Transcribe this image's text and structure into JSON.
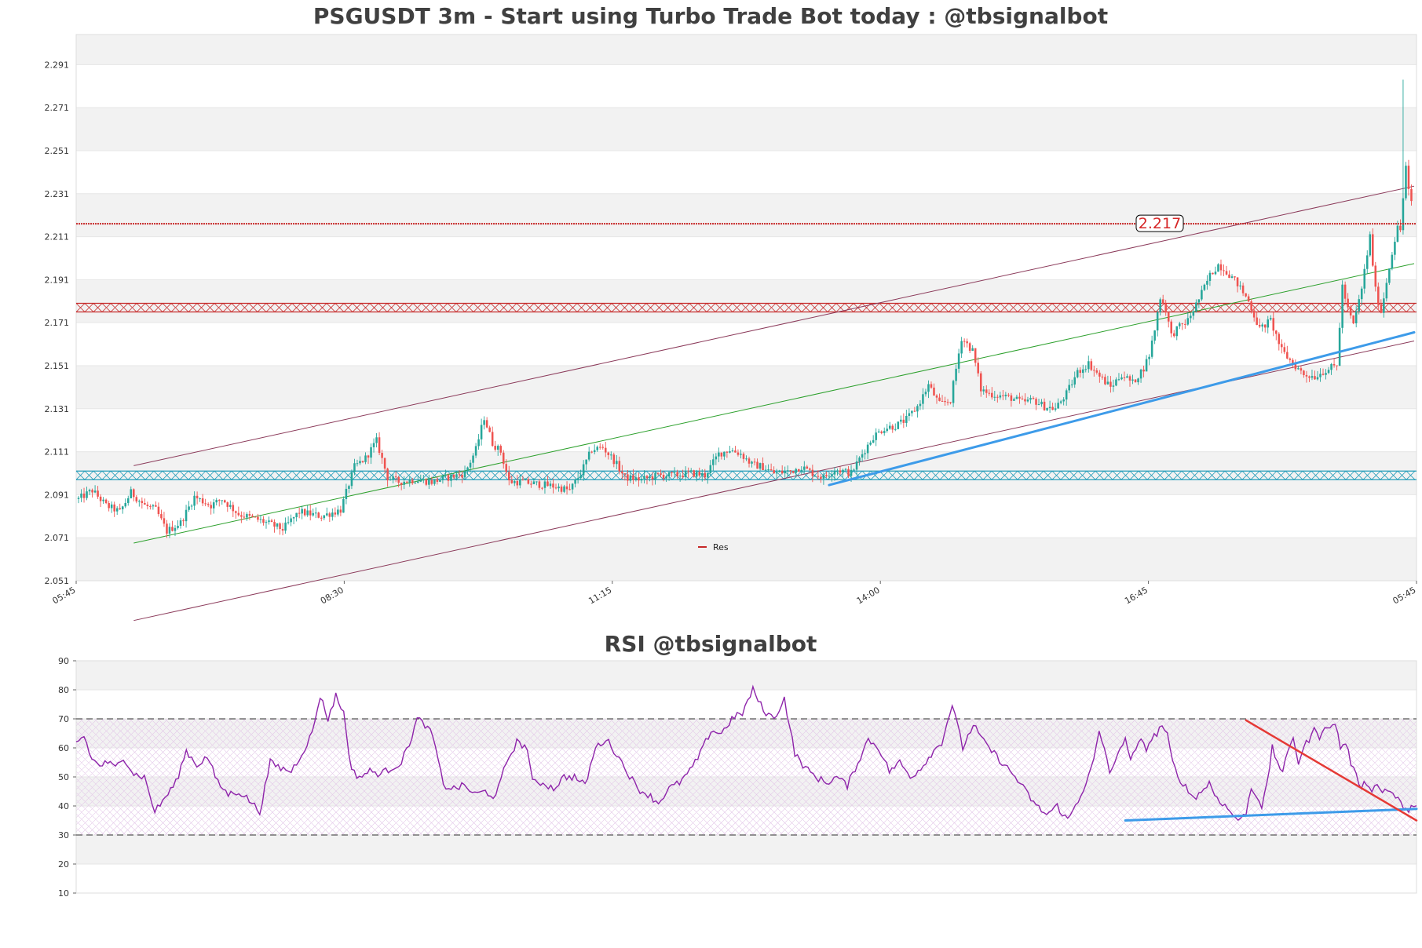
{
  "colors": {
    "up": "#26a69a",
    "down": "#ef5350",
    "resistance": "#c62828",
    "support": "#1f9bb8",
    "channel": "#8b3a5a",
    "midline": "#2ca02c",
    "trend_blue": "#3d9be9",
    "rsi_line": "#8e24aa",
    "rsi_trend_red": "#e53935",
    "band_fill": "#f2f2f2"
  },
  "chart_data": [
    {
      "type": "candlestick",
      "title": "PSGUSDT 3m - Start using Turbo Trade Bot today : @tbsignalbot",
      "ylim": [
        2.051,
        2.305
      ],
      "yticks": [
        "2.051",
        "2.071",
        "2.091",
        "2.111",
        "2.131",
        "2.151",
        "2.171",
        "2.191",
        "2.211",
        "2.231",
        "2.251",
        "2.271",
        "2.291"
      ],
      "xticks": [
        "05:45",
        "08:30",
        "11:15",
        "14:00",
        "16:45",
        "05:45"
      ],
      "bars_count": 484,
      "close_anchors": [
        [
          0,
          2.089
        ],
        [
          5,
          2.093
        ],
        [
          10,
          2.086
        ],
        [
          15,
          2.083
        ],
        [
          19,
          2.092
        ],
        [
          24,
          2.086
        ],
        [
          28,
          2.084
        ],
        [
          32,
          2.074
        ],
        [
          37,
          2.078
        ],
        [
          42,
          2.09
        ],
        [
          48,
          2.086
        ],
        [
          52,
          2.089
        ],
        [
          58,
          2.082
        ],
        [
          66,
          2.079
        ],
        [
          74,
          2.075
        ],
        [
          80,
          2.083
        ],
        [
          88,
          2.081
        ],
        [
          95,
          2.084
        ],
        [
          100,
          2.104
        ],
        [
          104,
          2.108
        ],
        [
          108,
          2.116
        ],
        [
          112,
          2.099
        ],
        [
          116,
          2.097
        ],
        [
          122,
          2.098
        ],
        [
          128,
          2.097
        ],
        [
          134,
          2.099
        ],
        [
          140,
          2.101
        ],
        [
          144,
          2.112
        ],
        [
          147,
          2.127
        ],
        [
          150,
          2.115
        ],
        [
          153,
          2.111
        ],
        [
          156,
          2.097
        ],
        [
          160,
          2.097
        ],
        [
          166,
          2.096
        ],
        [
          172,
          2.095
        ],
        [
          178,
          2.093
        ],
        [
          182,
          2.101
        ],
        [
          186,
          2.112
        ],
        [
          190,
          2.113
        ],
        [
          194,
          2.107
        ],
        [
          198,
          2.099
        ],
        [
          204,
          2.098
        ],
        [
          210,
          2.1
        ],
        [
          216,
          2.1
        ],
        [
          222,
          2.101
        ],
        [
          227,
          2.1
        ],
        [
          232,
          2.11
        ],
        [
          236,
          2.112
        ],
        [
          240,
          2.11
        ],
        [
          244,
          2.105
        ],
        [
          248,
          2.104
        ],
        [
          252,
          2.101
        ],
        [
          258,
          2.102
        ],
        [
          262,
          2.104
        ],
        [
          266,
          2.101
        ],
        [
          270,
          2.099
        ],
        [
          274,
          2.103
        ],
        [
          280,
          2.101
        ],
        [
          284,
          2.11
        ],
        [
          288,
          2.118
        ],
        [
          292,
          2.122
        ],
        [
          296,
          2.123
        ],
        [
          300,
          2.126
        ],
        [
          304,
          2.132
        ],
        [
          308,
          2.142
        ],
        [
          312,
          2.133
        ],
        [
          316,
          2.135
        ],
        [
          320,
          2.164
        ],
        [
          324,
          2.158
        ],
        [
          327,
          2.14
        ],
        [
          330,
          2.138
        ],
        [
          334,
          2.137
        ],
        [
          338,
          2.136
        ],
        [
          342,
          2.134
        ],
        [
          346,
          2.135
        ],
        [
          350,
          2.132
        ],
        [
          354,
          2.131
        ],
        [
          358,
          2.138
        ],
        [
          362,
          2.148
        ],
        [
          366,
          2.152
        ],
        [
          370,
          2.146
        ],
        [
          374,
          2.141
        ],
        [
          378,
          2.147
        ],
        [
          382,
          2.143
        ],
        [
          386,
          2.15
        ],
        [
          388,
          2.156
        ],
        [
          390,
          2.168
        ],
        [
          392,
          2.183
        ],
        [
          394,
          2.177
        ],
        [
          396,
          2.165
        ],
        [
          398,
          2.168
        ],
        [
          402,
          2.172
        ],
        [
          406,
          2.182
        ],
        [
          410,
          2.193
        ],
        [
          413,
          2.198
        ],
        [
          416,
          2.195
        ],
        [
          420,
          2.189
        ],
        [
          424,
          2.181
        ],
        [
          428,
          2.168
        ],
        [
          432,
          2.172
        ],
        [
          436,
          2.158
        ],
        [
          440,
          2.152
        ],
        [
          444,
          2.147
        ],
        [
          448,
          2.146
        ],
        [
          452,
          2.149
        ],
        [
          456,
          2.151
        ],
        [
          458,
          2.188
        ],
        [
          460,
          2.177
        ],
        [
          462,
          2.17
        ],
        [
          465,
          2.187
        ],
        [
          468,
          2.211
        ],
        [
          470,
          2.186
        ],
        [
          472,
          2.176
        ],
        [
          474,
          2.19
        ],
        [
          476,
          2.204
        ],
        [
          478,
          2.215
        ],
        [
          479,
          2.214
        ],
        [
          480,
          2.229
        ],
        [
          481,
          2.244
        ],
        [
          482,
          2.232
        ],
        [
          484,
          2.221
        ]
      ],
      "res_line": 2.217,
      "res_label": "2.217",
      "resistance_zone": [
        2.176,
        2.18
      ],
      "support_zone": [
        2.098,
        2.102
      ],
      "channel_upper": [
        [
          20,
          2.1045
        ],
        [
          484,
          2.2345
        ]
      ],
      "channel_lower": [
        [
          20,
          2.0325
        ],
        [
          484,
          2.1625
        ]
      ],
      "channel_mid": [
        [
          20,
          2.0685
        ],
        [
          484,
          2.1985
        ]
      ],
      "trend_blue": [
        [
          272,
          2.0955
        ],
        [
          484,
          2.1665
        ]
      ],
      "legend": [
        "Res"
      ]
    },
    {
      "type": "line",
      "title": "RSI @tbsignalbot",
      "ylim": [
        10,
        90
      ],
      "yticks": [
        "10",
        "20",
        "30",
        "40",
        "50",
        "60",
        "70",
        "80",
        "90"
      ],
      "levels": [
        30,
        70
      ],
      "rsi_anchors": [
        [
          0,
          62
        ],
        [
          3,
          64
        ],
        [
          6,
          56
        ],
        [
          9,
          54
        ],
        [
          12,
          55
        ],
        [
          15,
          53
        ],
        [
          18,
          57
        ],
        [
          22,
          51
        ],
        [
          26,
          50
        ],
        [
          30,
          38
        ],
        [
          34,
          43
        ],
        [
          38,
          48
        ],
        [
          42,
          59
        ],
        [
          46,
          54
        ],
        [
          50,
          57
        ],
        [
          54,
          48
        ],
        [
          58,
          44
        ],
        [
          62,
          45
        ],
        [
          66,
          42
        ],
        [
          70,
          38
        ],
        [
          74,
          55
        ],
        [
          78,
          53
        ],
        [
          82,
          52
        ],
        [
          86,
          58
        ],
        [
          90,
          65
        ],
        [
          93,
          78
        ],
        [
          96,
          70
        ],
        [
          99,
          78
        ],
        [
          102,
          72
        ],
        [
          105,
          52
        ],
        [
          108,
          50
        ],
        [
          112,
          52
        ],
        [
          116,
          51
        ],
        [
          120,
          53
        ],
        [
          124,
          55
        ],
        [
          128,
          64
        ],
        [
          130,
          70
        ],
        [
          133,
          68
        ],
        [
          136,
          64
        ],
        [
          140,
          47
        ],
        [
          144,
          46
        ],
        [
          148,
          47
        ],
        [
          152,
          44
        ],
        [
          156,
          45
        ],
        [
          160,
          43
        ],
        [
          164,
          55
        ],
        [
          168,
          62
        ],
        [
          172,
          60
        ],
        [
          174,
          48
        ],
        [
          178,
          48
        ],
        [
          182,
          46
        ],
        [
          186,
          50
        ],
        [
          190,
          50
        ],
        [
          194,
          47
        ],
        [
          198,
          60
        ],
        [
          202,
          63
        ],
        [
          206,
          58
        ],
        [
          210,
          52
        ],
        [
          214,
          46
        ],
        [
          218,
          44
        ],
        [
          222,
          41
        ],
        [
          226,
          46
        ],
        [
          230,
          48
        ],
        [
          234,
          52
        ],
        [
          238,
          58
        ],
        [
          242,
          66
        ],
        [
          246,
          65
        ],
        [
          250,
          70
        ],
        [
          254,
          72
        ],
        [
          258,
          80
        ],
        [
          262,
          73
        ],
        [
          266,
          70
        ],
        [
          270,
          77
        ],
        [
          274,
          58
        ],
        [
          278,
          53
        ],
        [
          282,
          50
        ],
        [
          286,
          48
        ],
        [
          290,
          50
        ],
        [
          294,
          47
        ],
        [
          298,
          55
        ],
        [
          302,
          63
        ],
        [
          306,
          60
        ],
        [
          310,
          52
        ],
        [
          314,
          55
        ],
        [
          318,
          50
        ],
        [
          322,
          53
        ],
        [
          326,
          58
        ],
        [
          330,
          62
        ],
        [
          334,
          75
        ],
        [
          338,
          60
        ],
        [
          342,
          68
        ],
        [
          346,
          62
        ],
        [
          350,
          58
        ],
        [
          354,
          54
        ],
        [
          358,
          50
        ],
        [
          362,
          45
        ],
        [
          366,
          40
        ],
        [
          370,
          37
        ],
        [
          374,
          40
        ],
        [
          378,
          35
        ],
        [
          382,
          42
        ],
        [
          386,
          50
        ],
        [
          388,
          56
        ],
        [
          390,
          65
        ],
        [
          392,
          60
        ],
        [
          394,
          52
        ],
        [
          396,
          54
        ],
        [
          398,
          60
        ],
        [
          400,
          64
        ],
        [
          402,
          55
        ],
        [
          404,
          60
        ],
        [
          406,
          62
        ],
        [
          408,
          60
        ],
        [
          410,
          63
        ],
        [
          412,
          65
        ],
        [
          414,
          68
        ],
        [
          416,
          64
        ],
        [
          418,
          55
        ],
        [
          420,
          50
        ],
        [
          422,
          48
        ],
        [
          424,
          45
        ],
        [
          426,
          43
        ],
        [
          428,
          44
        ],
        [
          430,
          46
        ],
        [
          432,
          48
        ],
        [
          434,
          44
        ],
        [
          436,
          42
        ],
        [
          438,
          40
        ],
        [
          440,
          38
        ],
        [
          442,
          36
        ],
        [
          444,
          35
        ],
        [
          446,
          38
        ],
        [
          448,
          46
        ],
        [
          450,
          44
        ],
        [
          452,
          40
        ],
        [
          454,
          47
        ],
        [
          456,
          60
        ],
        [
          458,
          55
        ],
        [
          460,
          52
        ],
        [
          462,
          58
        ],
        [
          464,
          64
        ],
        [
          466,
          55
        ],
        [
          468,
          60
        ],
        [
          470,
          63
        ],
        [
          472,
          66
        ],
        [
          474,
          64
        ],
        [
          476,
          68
        ],
        [
          478,
          66
        ],
        [
          480,
          69
        ],
        [
          482,
          60
        ],
        [
          484,
          62
        ],
        [
          486,
          55
        ],
        [
          488,
          50
        ],
        [
          490,
          47
        ],
        [
          492,
          48
        ],
        [
          494,
          46
        ],
        [
          496,
          47
        ],
        [
          498,
          45
        ],
        [
          500,
          46
        ],
        [
          502,
          44
        ],
        [
          504,
          42
        ],
        [
          506,
          40
        ],
        [
          508,
          37
        ],
        [
          510,
          41
        ]
      ],
      "rsi_points_count": 511,
      "trend_red": [
        [
          446,
          69.5
        ],
        [
          511,
          35
        ]
      ],
      "trend_blue": [
        [
          400,
          35
        ],
        [
          511,
          39
        ]
      ]
    }
  ]
}
